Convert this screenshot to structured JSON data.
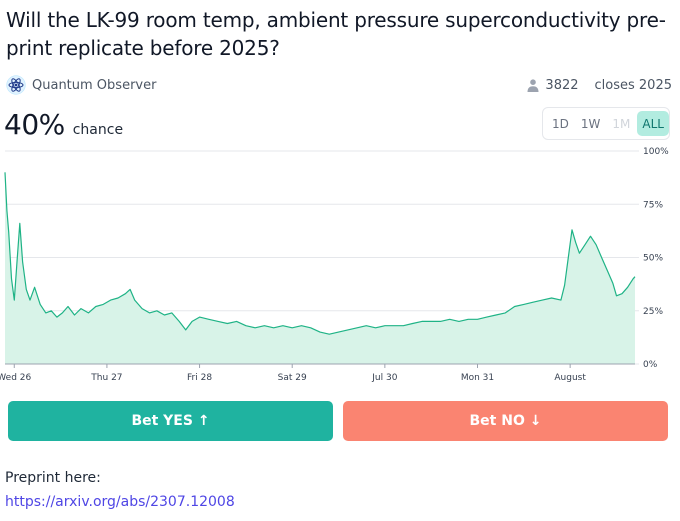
{
  "market": {
    "title": "Will the LK-99 room temp, ambient pressure superconductivity pre-print replicate before 2025?",
    "creator": "Quantum Observer",
    "traders": "3822",
    "closes": "closes 2025",
    "probability": "40%",
    "chance_label": "chance"
  },
  "ranges": [
    {
      "label": "1D",
      "state": "normal"
    },
    {
      "label": "1W",
      "state": "normal"
    },
    {
      "label": "1M",
      "state": "disabled"
    },
    {
      "label": "ALL",
      "state": "active"
    }
  ],
  "buttons": {
    "yes": "Bet YES ↑",
    "no": "Bet NO ↓"
  },
  "description": {
    "text": "Preprint here:",
    "link": "https://arxiv.org/abs/2307.12008"
  },
  "colors": {
    "line": "#1fb386",
    "fill": "#d8f3e8",
    "yes": "#1fb3a0",
    "no": "#fa8471",
    "link": "#4f46e5"
  },
  "icons": {
    "creator": "atom-icon",
    "traders": "user-icon"
  },
  "chart_data": {
    "type": "area",
    "ylim": [
      0,
      100
    ],
    "y_ticks": [
      "0%",
      "25%",
      "50%",
      "75%",
      "100%"
    ],
    "x_tick_labels": [
      "Wed 26",
      "Thu 27",
      "Fri 28",
      "Sat 29",
      "Jul 30",
      "Mon 31",
      "August"
    ],
    "x_ticks": [
      0.1,
      1.1,
      2.1,
      3.1,
      4.1,
      5.1,
      6.1
    ],
    "x_range": [
      0,
      6.8
    ],
    "grid": true,
    "series": [
      {
        "values": [
          [
            0,
            90
          ],
          [
            0.02,
            72
          ],
          [
            0.04,
            62
          ],
          [
            0.07,
            40
          ],
          [
            0.1,
            30
          ],
          [
            0.13,
            48
          ],
          [
            0.16,
            66
          ],
          [
            0.19,
            48
          ],
          [
            0.23,
            35
          ],
          [
            0.27,
            30
          ],
          [
            0.32,
            36
          ],
          [
            0.38,
            28
          ],
          [
            0.44,
            24
          ],
          [
            0.5,
            25
          ],
          [
            0.56,
            22
          ],
          [
            0.62,
            24
          ],
          [
            0.68,
            27
          ],
          [
            0.75,
            23
          ],
          [
            0.82,
            26
          ],
          [
            0.9,
            24
          ],
          [
            0.98,
            27
          ],
          [
            1.06,
            28
          ],
          [
            1.14,
            30
          ],
          [
            1.22,
            31
          ],
          [
            1.3,
            33
          ],
          [
            1.35,
            35
          ],
          [
            1.4,
            30
          ],
          [
            1.48,
            26
          ],
          [
            1.56,
            24
          ],
          [
            1.64,
            25
          ],
          [
            1.72,
            23
          ],
          [
            1.8,
            24
          ],
          [
            1.88,
            20
          ],
          [
            1.95,
            16
          ],
          [
            2.02,
            20
          ],
          [
            2.1,
            22
          ],
          [
            2.2,
            21
          ],
          [
            2.3,
            20
          ],
          [
            2.4,
            19
          ],
          [
            2.5,
            20
          ],
          [
            2.6,
            18
          ],
          [
            2.7,
            17
          ],
          [
            2.8,
            18
          ],
          [
            2.9,
            17
          ],
          [
            3.0,
            18
          ],
          [
            3.1,
            17
          ],
          [
            3.2,
            18
          ],
          [
            3.3,
            17
          ],
          [
            3.4,
            15
          ],
          [
            3.5,
            14
          ],
          [
            3.6,
            15
          ],
          [
            3.7,
            16
          ],
          [
            3.8,
            17
          ],
          [
            3.9,
            18
          ],
          [
            4.0,
            17
          ],
          [
            4.1,
            18
          ],
          [
            4.2,
            18
          ],
          [
            4.3,
            18
          ],
          [
            4.4,
            19
          ],
          [
            4.5,
            20
          ],
          [
            4.6,
            20
          ],
          [
            4.7,
            20
          ],
          [
            4.8,
            21
          ],
          [
            4.9,
            20
          ],
          [
            5.0,
            21
          ],
          [
            5.1,
            21
          ],
          [
            5.2,
            22
          ],
          [
            5.3,
            23
          ],
          [
            5.4,
            24
          ],
          [
            5.5,
            27
          ],
          [
            5.6,
            28
          ],
          [
            5.7,
            29
          ],
          [
            5.8,
            30
          ],
          [
            5.9,
            31
          ],
          [
            6.0,
            30
          ],
          [
            6.04,
            37
          ],
          [
            6.08,
            50
          ],
          [
            6.12,
            63
          ],
          [
            6.16,
            57
          ],
          [
            6.2,
            52
          ],
          [
            6.26,
            56
          ],
          [
            6.32,
            60
          ],
          [
            6.38,
            56
          ],
          [
            6.44,
            50
          ],
          [
            6.5,
            44
          ],
          [
            6.56,
            38
          ],
          [
            6.6,
            32
          ],
          [
            6.66,
            33
          ],
          [
            6.72,
            36
          ],
          [
            6.78,
            40
          ],
          [
            6.8,
            41
          ]
        ]
      }
    ]
  }
}
